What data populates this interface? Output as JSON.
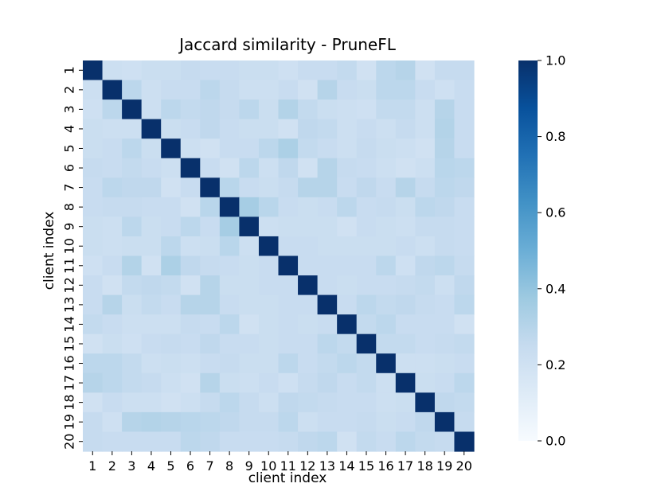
{
  "chart_data": {
    "type": "heatmap",
    "title": "Jaccard similarity - PruneFL",
    "xlabel": "client index",
    "ylabel": "client index",
    "x_categories": [
      "1",
      "2",
      "3",
      "4",
      "5",
      "6",
      "7",
      "8",
      "9",
      "10",
      "11",
      "12",
      "13",
      "14",
      "15",
      "16",
      "17",
      "18",
      "19",
      "20"
    ],
    "y_categories": [
      "1",
      "2",
      "3",
      "4",
      "5",
      "6",
      "7",
      "8",
      "9",
      "10",
      "11",
      "12",
      "13",
      "14",
      "15",
      "16",
      "17",
      "18",
      "19",
      "20"
    ],
    "colorbar": {
      "range": [
        0.0,
        1.0
      ],
      "ticks": [
        0.0,
        0.2,
        0.4,
        0.6,
        0.8,
        1.0
      ],
      "tick_labels": [
        "0.0",
        "0.2",
        "0.4",
        "0.6",
        "0.8",
        "1.0"
      ],
      "colormap": "Blues",
      "low_color": "#f7fbff",
      "high_color": "#08306b"
    },
    "values": [
      [
        1.0,
        0.22,
        0.21,
        0.23,
        0.23,
        0.25,
        0.24,
        0.24,
        0.23,
        0.23,
        0.21,
        0.24,
        0.24,
        0.26,
        0.2,
        0.28,
        0.3,
        0.2,
        0.25,
        0.25
      ],
      [
        0.22,
        1.0,
        0.28,
        0.22,
        0.24,
        0.24,
        0.28,
        0.25,
        0.22,
        0.22,
        0.24,
        0.2,
        0.3,
        0.24,
        0.23,
        0.28,
        0.28,
        0.24,
        0.21,
        0.24
      ],
      [
        0.21,
        0.28,
        1.0,
        0.22,
        0.28,
        0.26,
        0.27,
        0.25,
        0.28,
        0.23,
        0.31,
        0.26,
        0.23,
        0.22,
        0.21,
        0.26,
        0.26,
        0.22,
        0.3,
        0.24
      ],
      [
        0.23,
        0.22,
        0.22,
        1.0,
        0.23,
        0.24,
        0.27,
        0.24,
        0.23,
        0.23,
        0.2,
        0.27,
        0.26,
        0.22,
        0.24,
        0.22,
        0.25,
        0.22,
        0.31,
        0.24
      ],
      [
        0.23,
        0.24,
        0.28,
        0.23,
        1.0,
        0.22,
        0.2,
        0.24,
        0.24,
        0.28,
        0.33,
        0.26,
        0.24,
        0.22,
        0.25,
        0.23,
        0.22,
        0.2,
        0.3,
        0.24
      ],
      [
        0.25,
        0.24,
        0.26,
        0.24,
        0.22,
        1.0,
        0.24,
        0.2,
        0.28,
        0.22,
        0.27,
        0.2,
        0.3,
        0.25,
        0.24,
        0.22,
        0.2,
        0.22,
        0.29,
        0.28
      ],
      [
        0.24,
        0.28,
        0.27,
        0.27,
        0.2,
        0.24,
        1.0,
        0.29,
        0.24,
        0.23,
        0.25,
        0.3,
        0.3,
        0.24,
        0.27,
        0.24,
        0.3,
        0.25,
        0.28,
        0.27
      ],
      [
        0.24,
        0.25,
        0.25,
        0.24,
        0.24,
        0.2,
        0.29,
        1.0,
        0.35,
        0.29,
        0.24,
        0.23,
        0.24,
        0.28,
        0.24,
        0.25,
        0.23,
        0.28,
        0.27,
        0.24
      ],
      [
        0.23,
        0.22,
        0.28,
        0.23,
        0.24,
        0.28,
        0.24,
        0.35,
        1.0,
        0.22,
        0.23,
        0.23,
        0.23,
        0.2,
        0.24,
        0.23,
        0.22,
        0.25,
        0.25,
        0.24
      ],
      [
        0.23,
        0.22,
        0.23,
        0.23,
        0.28,
        0.22,
        0.23,
        0.29,
        0.22,
        1.0,
        0.24,
        0.24,
        0.23,
        0.23,
        0.23,
        0.23,
        0.24,
        0.22,
        0.25,
        0.24
      ],
      [
        0.21,
        0.24,
        0.31,
        0.2,
        0.33,
        0.27,
        0.25,
        0.24,
        0.23,
        0.24,
        1.0,
        0.24,
        0.24,
        0.24,
        0.24,
        0.28,
        0.21,
        0.27,
        0.28,
        0.25
      ],
      [
        0.24,
        0.2,
        0.26,
        0.27,
        0.26,
        0.2,
        0.3,
        0.23,
        0.23,
        0.24,
        0.24,
        1.0,
        0.24,
        0.23,
        0.24,
        0.24,
        0.25,
        0.26,
        0.22,
        0.27
      ],
      [
        0.24,
        0.3,
        0.23,
        0.26,
        0.24,
        0.3,
        0.3,
        0.24,
        0.23,
        0.23,
        0.24,
        0.24,
        1.0,
        0.24,
        0.28,
        0.26,
        0.27,
        0.25,
        0.24,
        0.28
      ],
      [
        0.26,
        0.24,
        0.22,
        0.22,
        0.22,
        0.25,
        0.24,
        0.28,
        0.2,
        0.23,
        0.24,
        0.23,
        0.24,
        1.0,
        0.26,
        0.28,
        0.24,
        0.24,
        0.24,
        0.2
      ],
      [
        0.2,
        0.23,
        0.21,
        0.24,
        0.25,
        0.24,
        0.27,
        0.24,
        0.24,
        0.23,
        0.24,
        0.24,
        0.28,
        0.26,
        1.0,
        0.26,
        0.26,
        0.24,
        0.25,
        0.26
      ],
      [
        0.28,
        0.28,
        0.26,
        0.22,
        0.23,
        0.22,
        0.24,
        0.25,
        0.23,
        0.23,
        0.28,
        0.24,
        0.26,
        0.28,
        0.26,
        1.0,
        0.22,
        0.22,
        0.23,
        0.24
      ],
      [
        0.3,
        0.28,
        0.26,
        0.25,
        0.22,
        0.2,
        0.3,
        0.23,
        0.22,
        0.24,
        0.21,
        0.25,
        0.27,
        0.24,
        0.26,
        0.22,
        1.0,
        0.23,
        0.24,
        0.28
      ],
      [
        0.2,
        0.24,
        0.22,
        0.22,
        0.2,
        0.22,
        0.25,
        0.28,
        0.25,
        0.22,
        0.27,
        0.26,
        0.25,
        0.24,
        0.24,
        0.22,
        0.23,
        1.0,
        0.27,
        0.26
      ],
      [
        0.25,
        0.21,
        0.3,
        0.31,
        0.3,
        0.29,
        0.28,
        0.27,
        0.25,
        0.25,
        0.28,
        0.22,
        0.24,
        0.24,
        0.25,
        0.23,
        0.24,
        0.27,
        1.0,
        0.25
      ],
      [
        0.25,
        0.24,
        0.24,
        0.24,
        0.24,
        0.28,
        0.27,
        0.24,
        0.24,
        0.24,
        0.25,
        0.27,
        0.28,
        0.2,
        0.26,
        0.24,
        0.28,
        0.26,
        0.25,
        1.0
      ]
    ]
  }
}
